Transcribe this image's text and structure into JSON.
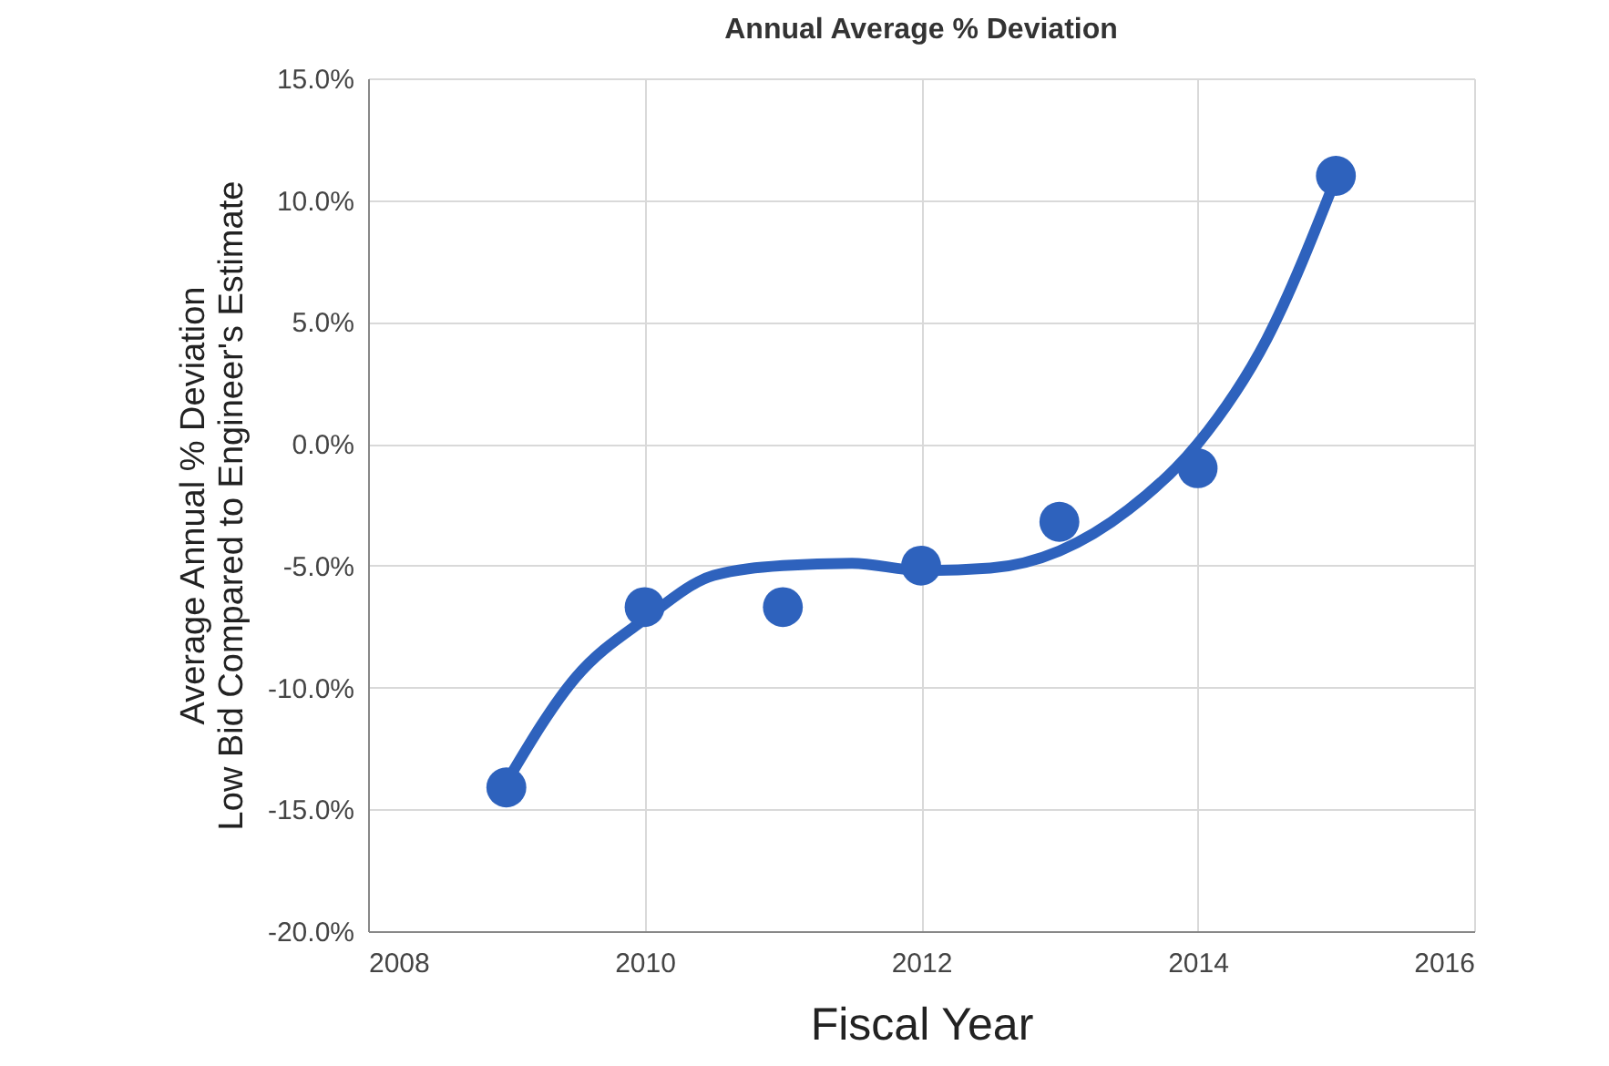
{
  "chart_data": {
    "type": "scatter",
    "title": "Annual Average % Deviation",
    "xlabel": "Fiscal Year",
    "ylabel": "Average Annual % Deviation\nLow Bid Compared to Engineer's Estimate",
    "x": [
      2009,
      2010,
      2011,
      2012,
      2013,
      2014,
      2015
    ],
    "series": [
      {
        "color": "#2e62bd",
        "values": [
          -14.1,
          -6.7,
          -6.7,
          -5.0,
          -3.2,
          -1.0,
          11.0
        ]
      },
      {
        "type": "line",
        "marker": "none",
        "color": "#2e62bd",
        "x": [
          2009,
          2009.5,
          2010,
          2010.5,
          2011,
          2011.5,
          2012,
          2012.5,
          2013,
          2013.5,
          2014,
          2014.5,
          2015
        ],
        "values": [
          -13.9,
          -9.6,
          -7.2,
          -5.4,
          -5.0,
          -4.9,
          -5.2,
          -5.1,
          -4.4,
          -2.7,
          0.0,
          4.3,
          10.9
        ]
      }
    ],
    "xlim": [
      2008,
      2016
    ],
    "xticks": [
      2008,
      2010,
      2012,
      2014,
      2016
    ],
    "ylim": [
      -20,
      15
    ],
    "yticks": [
      {
        "value": -20,
        "label": "-20.0%"
      },
      {
        "value": -15,
        "label": "-15.0%"
      },
      {
        "value": -10,
        "label": "-10.0%"
      },
      {
        "value": -5,
        "label": "-5.0%"
      },
      {
        "value": 0,
        "label": "0.0%"
      },
      {
        "value": 5,
        "label": "5.0%"
      },
      {
        "value": 10,
        "label": "10.0%"
      },
      {
        "value": 15,
        "label": "15.0%"
      }
    ],
    "grid": true,
    "marker": "circle",
    "line_style": "solid"
  }
}
